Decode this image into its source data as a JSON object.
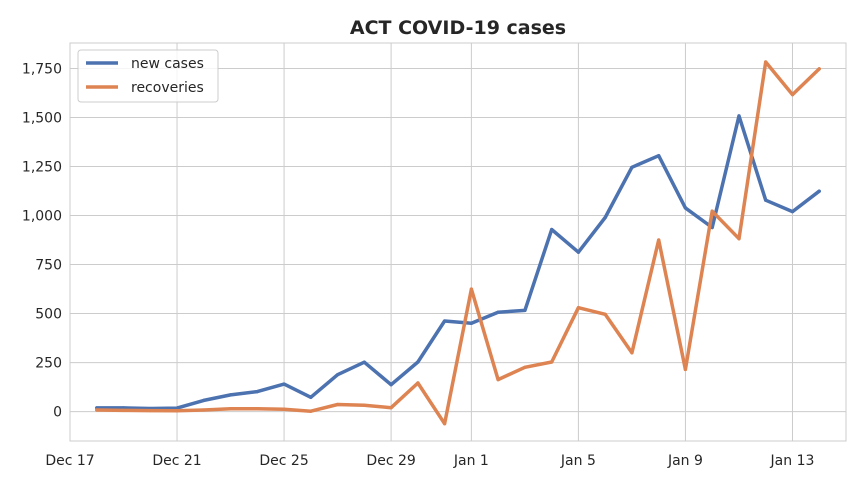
{
  "chart_data": {
    "type": "line",
    "title": "ACT COVID-19 cases",
    "xlabel": "",
    "ylabel": "",
    "x": [
      "2021-12-18",
      "2021-12-19",
      "2021-12-20",
      "2021-12-21",
      "2021-12-22",
      "2021-12-23",
      "2021-12-24",
      "2021-12-25",
      "2021-12-26",
      "2021-12-27",
      "2021-12-28",
      "2021-12-29",
      "2021-12-30",
      "2021-12-31",
      "2022-01-01",
      "2022-01-02",
      "2022-01-03",
      "2022-01-04",
      "2022-01-05",
      "2022-01-06",
      "2022-01-07",
      "2022-01-08",
      "2022-01-09",
      "2022-01-10",
      "2022-01-11",
      "2022-01-12",
      "2022-01-13",
      "2022-01-14"
    ],
    "series": [
      {
        "name": "new cases",
        "color": "#4c72b0",
        "values": [
          19,
          19,
          16,
          18,
          57,
          85,
          102,
          140,
          73,
          188,
          252,
          137,
          253,
          462,
          451,
          507,
          516,
          929,
          813,
          990,
          1246,
          1305,
          1039,
          939,
          1508,
          1078,
          1020,
          1124
        ]
      },
      {
        "name": "recoveries",
        "color": "#dd8452",
        "values": [
          8,
          6,
          5,
          4,
          8,
          15,
          14,
          12,
          2,
          36,
          32,
          20,
          146,
          -62,
          625,
          163,
          226,
          253,
          530,
          496,
          300,
          875,
          215,
          1022,
          882,
          1783,
          1617,
          1748
        ]
      }
    ],
    "xticks": [
      "Dec 17",
      "Dec 21",
      "Dec 25",
      "Dec 29",
      "Jan 1",
      "Jan 5",
      "Jan 9",
      "Jan 13"
    ],
    "xtick_dates": [
      "2021-12-17",
      "2021-12-21",
      "2021-12-25",
      "2021-12-29",
      "2022-01-01",
      "2022-01-05",
      "2022-01-09",
      "2022-01-13"
    ],
    "yticks": [
      "0",
      "250",
      "500",
      "750",
      "1,000",
      "1,250",
      "1,500",
      "1,750"
    ],
    "ytick_values": [
      0,
      250,
      500,
      750,
      1000,
      1250,
      1500,
      1750
    ],
    "xlim": [
      "2021-12-17",
      "2022-01-15"
    ],
    "ylim": [
      -150,
      1880
    ],
    "grid": true,
    "legend_position": "upper-left"
  }
}
